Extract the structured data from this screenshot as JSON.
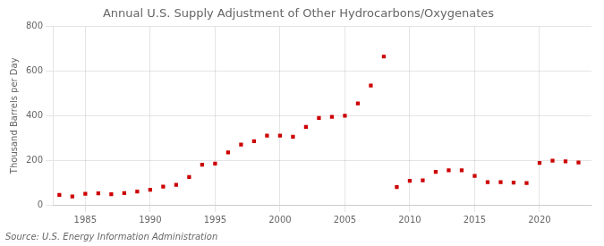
{
  "chart_data": {
    "type": "scatter",
    "title": "Annual U.S. Supply Adjustment of Other Hydrocarbons/Oxygenates",
    "ylabel": "Thousand Barrels per Day",
    "source": "Source: U.S. Energy Information Administration",
    "x": [
      1983,
      1984,
      1985,
      1986,
      1987,
      1988,
      1989,
      1990,
      1991,
      1992,
      1993,
      1994,
      1995,
      1996,
      1997,
      1998,
      1999,
      2000,
      2001,
      2002,
      2003,
      2004,
      2005,
      2006,
      2007,
      2008,
      2009,
      2010,
      2011,
      2012,
      2013,
      2014,
      2015,
      2016,
      2017,
      2018,
      2019,
      2020,
      2021,
      2022,
      2023
    ],
    "values": [
      45,
      38,
      50,
      52,
      48,
      53,
      60,
      68,
      82,
      90,
      125,
      180,
      185,
      235,
      270,
      285,
      310,
      310,
      305,
      350,
      390,
      395,
      400,
      455,
      535,
      665,
      80,
      108,
      110,
      148,
      155,
      155,
      130,
      102,
      102,
      100,
      98,
      188,
      198,
      195,
      190
    ],
    "color": "#cc0000",
    "marker": "square",
    "xlim": [
      1982.5,
      2024
    ],
    "xticks": [
      1985,
      1990,
      1995,
      2000,
      2005,
      2010,
      2015,
      2020
    ],
    "ylim": [
      0,
      800
    ],
    "yticks": [
      0,
      200,
      400,
      600,
      800
    ],
    "grid": true
  }
}
